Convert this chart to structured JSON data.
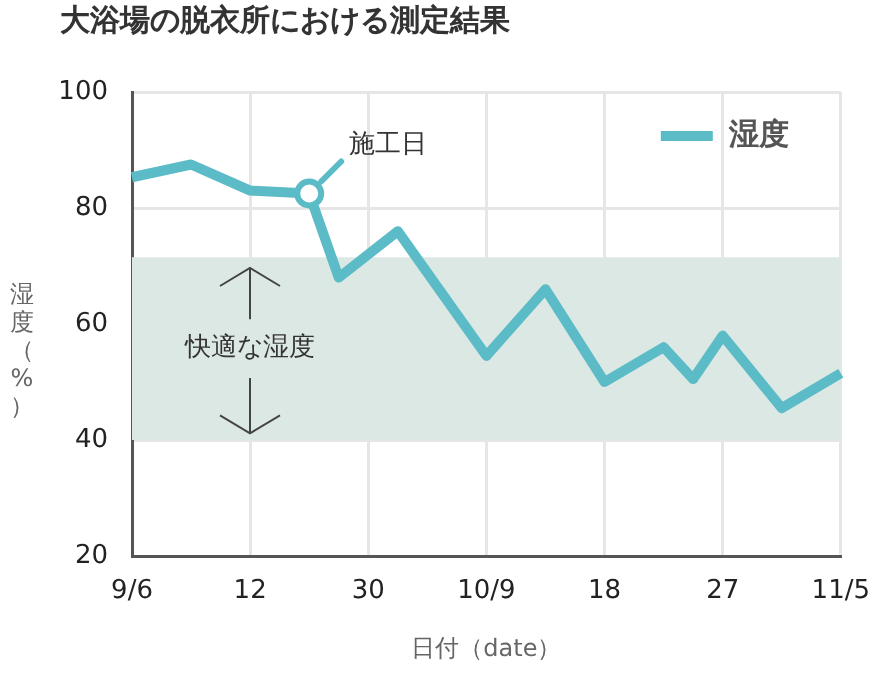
{
  "chart_data": {
    "type": "line",
    "title": "大浴場の脱衣所における測定結果",
    "xlabel": "日付（date）",
    "ylabel": "湿度（%）",
    "categories": [
      "9/6",
      null,
      null,
      null,
      "12",
      null,
      null,
      null,
      "30",
      null,
      null,
      null,
      "10/9",
      null,
      null,
      null,
      "18",
      null,
      null,
      null,
      "27",
      null,
      null,
      null,
      "11/5"
    ],
    "series": [
      {
        "name": "湿度",
        "color": "#5bbcc8",
        "values": [
          85.3,
          null,
          87.5,
          null,
          83,
          null,
          82.5,
          68,
          null,
          76,
          null,
          null,
          54.5,
          null,
          66,
          null,
          50,
          null,
          56,
          50.5,
          58,
          null,
          45.5,
          null,
          51.5
        ]
      }
    ],
    "ylim": [
      20,
      100
    ],
    "yticks": [
      20,
      40,
      60,
      80,
      100
    ],
    "bands": [
      {
        "axis": "y",
        "from": 40,
        "to": 71.5,
        "label": "快適な湿度",
        "color": "#dce8e3"
      }
    ],
    "annotations": [
      "施工日"
    ],
    "grid": true,
    "legend": "top right",
    "marker": "none",
    "line_style": "solid"
  }
}
